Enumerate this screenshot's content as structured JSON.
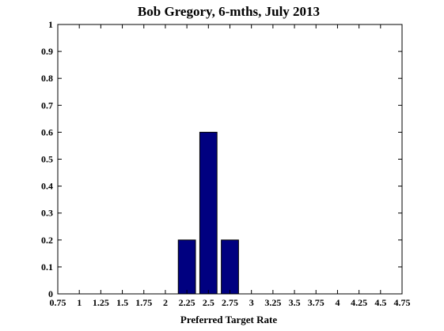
{
  "chart_data": {
    "type": "bar",
    "title": "Bob Gregory, 6-mths, July 2013",
    "xlabel": "Preferred Target Rate",
    "ylabel": "",
    "xlim": [
      0.75,
      4.75
    ],
    "ylim": [
      0,
      1
    ],
    "x_ticks": [
      "0.75",
      "1",
      "1.25",
      "1.5",
      "1.75",
      "2",
      "2.25",
      "2.5",
      "2.75",
      "3",
      "3.25",
      "3.5",
      "3.75",
      "4",
      "4.25",
      "4.5",
      "4.75"
    ],
    "y_ticks": [
      "0",
      "0.1",
      "0.2",
      "0.3",
      "0.4",
      "0.5",
      "0.6",
      "0.7",
      "0.8",
      "0.9",
      "1"
    ],
    "x": [
      2.25,
      2.5,
      2.75
    ],
    "values": [
      0.2,
      0.6,
      0.2
    ],
    "bar_color": "#000080",
    "grid": false,
    "legend": "none"
  }
}
